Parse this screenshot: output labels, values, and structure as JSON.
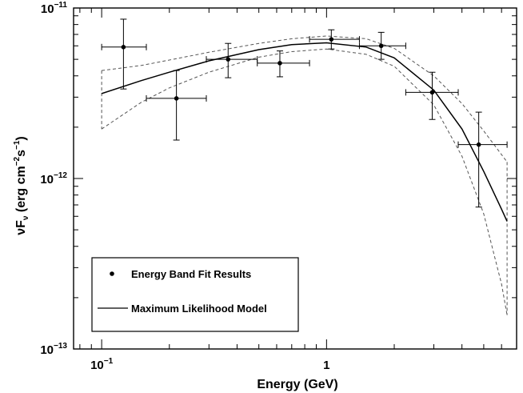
{
  "chart_data": {
    "type": "scatter",
    "xlabel": "Energy (GeV)",
    "ylabel_parts": {
      "nu": "νF",
      "sub": "ν",
      "unit_a": " (erg cm",
      "exp_a": "−2",
      "unit_b": "s",
      "exp_b": "−1",
      "close": ")"
    },
    "x_scale": "log",
    "y_scale": "log",
    "xlim": [
      0.075,
      7.0
    ],
    "ylim": [
      1e-13,
      1e-11
    ],
    "x_ticks": [
      {
        "value": 0.1,
        "base": "10",
        "exp": "−1"
      },
      {
        "value": 1,
        "base": "1",
        "exp": ""
      }
    ],
    "y_ticks": [
      {
        "value": 1e-11,
        "base": "10",
        "exp": "−11"
      },
      {
        "value": 1e-12,
        "base": "10",
        "exp": "−12"
      },
      {
        "value": 1e-13,
        "base": "10",
        "exp": "−13"
      }
    ],
    "legend": {
      "placement": "bottom-left",
      "entries": [
        {
          "label": "Energy Band Fit Results",
          "marker": "point"
        },
        {
          "label": "Maximum Likelihood Model",
          "marker": "line"
        }
      ]
    },
    "points": [
      {
        "x": 0.125,
        "xlo": 0.1,
        "xhi": 0.158,
        "y": 5.9e-12,
        "ylo": 3.35e-12,
        "yhi": 8.6e-12
      },
      {
        "x": 0.215,
        "xlo": 0.158,
        "xhi": 0.292,
        "y": 2.95e-12,
        "ylo": 1.68e-12,
        "yhi": 4.3e-12
      },
      {
        "x": 0.365,
        "xlo": 0.292,
        "xhi": 0.492,
        "y": 5e-12,
        "ylo": 3.9e-12,
        "yhi": 6.2e-12
      },
      {
        "x": 0.62,
        "xlo": 0.492,
        "xhi": 0.84,
        "y": 4.75e-12,
        "ylo": 3.95e-12,
        "yhi": 5.6e-12
      },
      {
        "x": 1.05,
        "xlo": 0.84,
        "xhi": 1.4,
        "y": 6.55e-12,
        "ylo": 5.75e-12,
        "yhi": 7.45e-12
      },
      {
        "x": 1.75,
        "xlo": 1.4,
        "xhi": 2.25,
        "y": 6e-12,
        "ylo": 5e-12,
        "yhi": 7.2e-12
      },
      {
        "x": 2.95,
        "xlo": 2.25,
        "xhi": 3.85,
        "y": 3.2e-12,
        "ylo": 2.22e-12,
        "yhi": 4.2e-12
      },
      {
        "x": 4.75,
        "xlo": 3.85,
        "xhi": 6.35,
        "y": 1.58e-12,
        "ylo": 6.8e-13,
        "yhi": 2.45e-12
      }
    ],
    "model": {
      "name": "Maximum Likelihood Model",
      "x": [
        0.1,
        0.15,
        0.2,
        0.3,
        0.5,
        0.7,
        1.0,
        1.5,
        2.0,
        3.0,
        4.0,
        5.0,
        6.0,
        6.35
      ],
      "y": [
        3.15e-12,
        3.75e-12,
        4.2e-12,
        4.9e-12,
        5.7e-12,
        6.1e-12,
        6.25e-12,
        5.9e-12,
        5.1e-12,
        3.3e-12,
        1.95e-12,
        1.1e-12,
        6.6e-13,
        5.6e-13
      ]
    },
    "band_upper": {
      "x": [
        0.1,
        0.15,
        0.2,
        0.3,
        0.5,
        0.7,
        1.0,
        1.5,
        2.0,
        3.0,
        4.0,
        5.0,
        6.0,
        6.35
      ],
      "y": [
        4.3e-12,
        4.6e-12,
        4.95e-12,
        5.5e-12,
        6.2e-12,
        6.6e-12,
        6.85e-12,
        6.6e-12,
        5.8e-12,
        4e-12,
        2.75e-12,
        1.9e-12,
        1.38e-12,
        1.25e-12
      ]
    },
    "band_lower": {
      "x": [
        0.1,
        0.15,
        0.2,
        0.3,
        0.5,
        0.7,
        1.0,
        1.5,
        2.0,
        3.0,
        4.0,
        5.0,
        6.0,
        6.35
      ],
      "y": [
        1.95e-12,
        2.8e-12,
        3.4e-12,
        4.2e-12,
        5.15e-12,
        5.55e-12,
        5.75e-12,
        5.35e-12,
        4.55e-12,
        2.7e-12,
        1.35e-12,
        6.2e-13,
        2.4e-13,
        1.58e-13
      ]
    }
  }
}
